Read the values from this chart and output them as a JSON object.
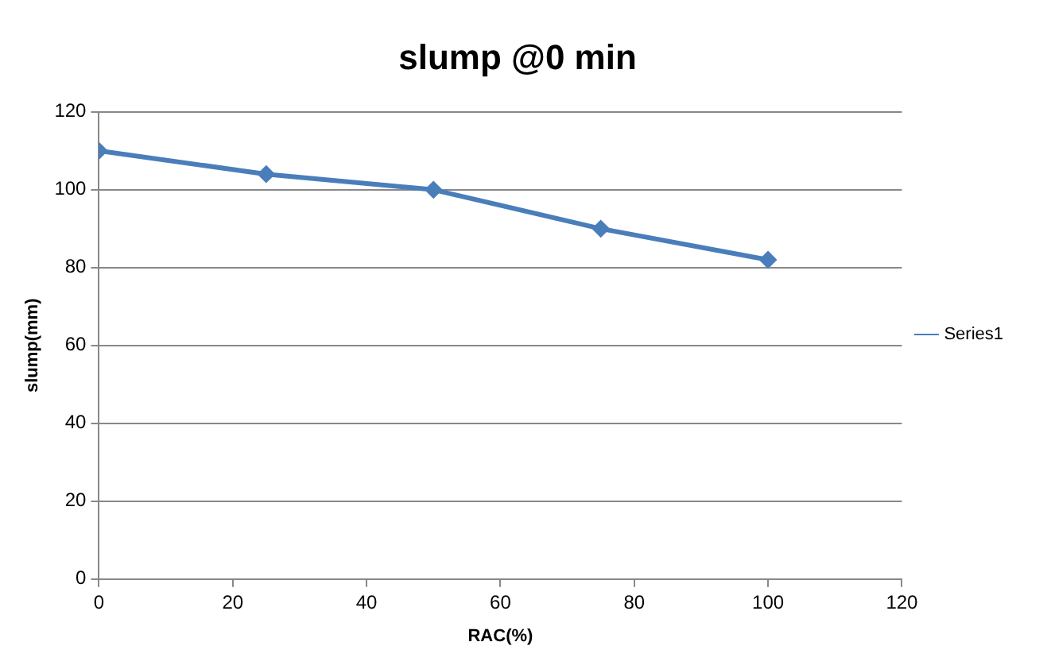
{
  "chart_data": {
    "type": "line",
    "title": "slump @0 min",
    "xlabel": "RAC(%)",
    "ylabel": "slump(mm)",
    "x": [
      0,
      25,
      50,
      75,
      100
    ],
    "series": [
      {
        "name": "Series1",
        "color": "#4a7ebb",
        "values": [
          110,
          104,
          100,
          90,
          82
        ]
      }
    ],
    "xlim": [
      0,
      120
    ],
    "xticks": [
      0,
      20,
      40,
      60,
      80,
      100,
      120
    ],
    "ylim": [
      0,
      120
    ],
    "yticks": [
      0,
      20,
      40,
      60,
      80,
      100,
      120
    ],
    "grid": "y",
    "legend": "right",
    "marker": "diamond",
    "line_style": "solid"
  }
}
